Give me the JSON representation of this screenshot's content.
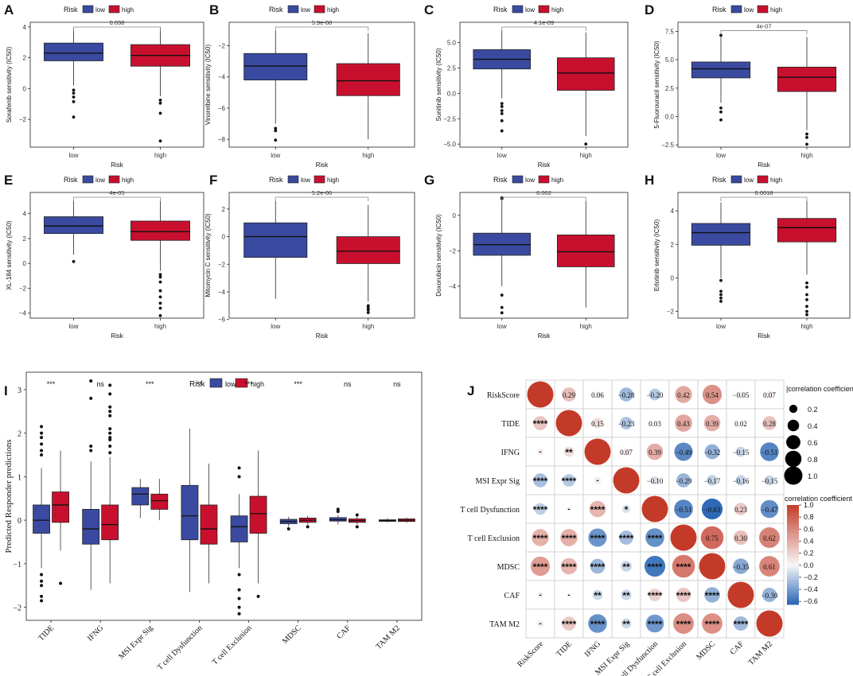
{
  "colors": {
    "low": "#3a4aa0",
    "high": "#c8102e",
    "axis": "#333333",
    "grid": "#bbbbbb"
  },
  "risk_legend": {
    "title": "Risk",
    "low": "low",
    "high": "high"
  },
  "chart_data": [
    {
      "panel": "A",
      "type": "box",
      "xlabel": "Risk",
      "ylabel": "Sorafenib sensitivity (IC50)",
      "categories": [
        "low",
        "high"
      ],
      "pvalue": "0.038",
      "ylim": [
        -3.8,
        4.3
      ],
      "yticks": [
        -2,
        0,
        2,
        4
      ],
      "boxes": [
        {
          "group": "low",
          "q1": 1.8,
          "median": 2.3,
          "q3": 2.95,
          "whisker_low": 0.2,
          "whisker_high": 3.9,
          "outliers": [
            -0.1,
            -0.3,
            -0.55,
            -0.85,
            -1.85
          ]
        },
        {
          "group": "high",
          "q1": 1.45,
          "median": 2.15,
          "q3": 2.85,
          "whisker_low": -0.5,
          "whisker_high": 4.0,
          "outliers": [
            -0.75,
            -0.95,
            -1.6,
            -3.4
          ]
        }
      ]
    },
    {
      "panel": "B",
      "type": "box",
      "xlabel": "Risk",
      "ylabel": "Vinorelbine sensitivity (IC50)",
      "categories": [
        "low",
        "high"
      ],
      "pvalue": "5.9e-08",
      "ylim": [
        -8.5,
        -0.5
      ],
      "yticks": [
        -8,
        -6,
        -4,
        -2
      ],
      "boxes": [
        {
          "group": "low",
          "q1": -4.2,
          "median": -3.3,
          "q3": -2.5,
          "whisker_low": -7.0,
          "whisker_high": -1.0,
          "outliers": [
            -7.3,
            -7.45,
            -8.05
          ]
        },
        {
          "group": "high",
          "q1": -5.2,
          "median": -4.25,
          "q3": -3.15,
          "whisker_low": -8.0,
          "whisker_high": -1.2,
          "outliers": []
        }
      ]
    },
    {
      "panel": "C",
      "type": "box",
      "xlabel": "Risk",
      "ylabel": "Sunitinib sensitivity (IC50)",
      "categories": [
        "low",
        "high"
      ],
      "pvalue": "4.1e-09",
      "ylim": [
        -5.3,
        7.0
      ],
      "yticks": [
        -5.0,
        -2.5,
        0.0,
        2.5,
        5.0
      ],
      "boxes": [
        {
          "group": "low",
          "q1": 2.4,
          "median": 3.35,
          "q3": 4.3,
          "whisker_low": -0.5,
          "whisker_high": 6.2,
          "outliers": [
            -1.0,
            -1.3,
            -1.7,
            -2.0,
            -2.7,
            -3.7
          ]
        },
        {
          "group": "high",
          "q1": 0.3,
          "median": 2.0,
          "q3": 3.5,
          "whisker_low": -4.2,
          "whisker_high": 6.0,
          "outliers": [
            -5.0
          ]
        }
      ]
    },
    {
      "panel": "D",
      "type": "box",
      "xlabel": "Risk",
      "ylabel": "5-Fluorouracil sensitivity (IC50)",
      "categories": [
        "low",
        "high"
      ],
      "pvalue": "4e-07",
      "ylim": [
        -2.7,
        8.3
      ],
      "yticks": [
        -2.5,
        0.0,
        2.5,
        5.0,
        7.5
      ],
      "boxes": [
        {
          "group": "low",
          "q1": 3.4,
          "median": 4.2,
          "q3": 4.8,
          "whisker_low": 1.2,
          "whisker_high": 7.0,
          "outliers": [
            7.15,
            0.75,
            0.4,
            -0.3
          ]
        },
        {
          "group": "high",
          "q1": 2.2,
          "median": 3.45,
          "q3": 4.35,
          "whisker_low": -1.2,
          "whisker_high": 7.0,
          "outliers": [
            -1.55,
            -1.85,
            -2.45
          ]
        }
      ]
    },
    {
      "panel": "E",
      "type": "box",
      "xlabel": "Risk",
      "ylabel": "XL-184 sensitivity (IC50)",
      "categories": [
        "low",
        "high"
      ],
      "pvalue": "4e-05",
      "ylim": [
        -4.4,
        5.7
      ],
      "yticks": [
        -4,
        -2,
        0,
        2,
        4
      ],
      "boxes": [
        {
          "group": "low",
          "q1": 2.4,
          "median": 3.0,
          "q3": 3.75,
          "whisker_low": 0.7,
          "whisker_high": 5.0,
          "outliers": [
            0.15
          ]
        },
        {
          "group": "high",
          "q1": 1.85,
          "median": 2.55,
          "q3": 3.4,
          "whisker_low": -0.6,
          "whisker_high": 5.0,
          "outliers": [
            -0.9,
            -1.1,
            -1.5,
            -2.2,
            -2.7,
            -3.2,
            -3.6,
            -4.2
          ]
        }
      ]
    },
    {
      "panel": "F",
      "type": "box",
      "xlabel": "Risk",
      "ylabel": "Mitomycin C sensitivity (IC50)",
      "categories": [
        "low",
        "high"
      ],
      "pvalue": "5.2e-06",
      "ylim": [
        -5.9,
        3.2
      ],
      "yticks": [
        -6,
        -4,
        -2,
        0,
        2
      ],
      "boxes": [
        {
          "group": "low",
          "q1": -1.5,
          "median": 0.0,
          "q3": 1.0,
          "whisker_low": -4.5,
          "whisker_high": 2.6,
          "outliers": []
        },
        {
          "group": "high",
          "q1": -1.95,
          "median": -1.05,
          "q3": 0.0,
          "whisker_low": -4.7,
          "whisker_high": 2.3,
          "outliers": [
            -5.0,
            -5.15,
            -5.3,
            -5.5
          ]
        }
      ]
    },
    {
      "panel": "G",
      "type": "box",
      "xlabel": "Risk",
      "ylabel": "Doxorubicin sensitivity (IC50)",
      "categories": [
        "low",
        "high"
      ],
      "pvalue": "0.002",
      "ylim": [
        -5.8,
        1.3
      ],
      "yticks": [
        -4,
        -2,
        0
      ],
      "boxes": [
        {
          "group": "low",
          "q1": -2.25,
          "median": -1.65,
          "q3": -1.0,
          "whisker_low": -4.0,
          "whisker_high": 0.9,
          "outliers": [
            1.0,
            0.95,
            -4.5,
            -5.2,
            -5.5
          ]
        },
        {
          "group": "high",
          "q1": -2.9,
          "median": -2.05,
          "q3": -1.1,
          "whisker_low": -5.2,
          "whisker_high": 0.8,
          "outliers": []
        }
      ]
    },
    {
      "panel": "H",
      "type": "box",
      "xlabel": "Risk",
      "ylabel": "Erlotinib sensitivity (IC50)",
      "categories": [
        "low",
        "high"
      ],
      "pvalue": "0.0018",
      "ylim": [
        -2.4,
        5.1
      ],
      "yticks": [
        -2,
        0,
        2,
        4
      ],
      "boxes": [
        {
          "group": "low",
          "q1": 1.95,
          "median": 2.7,
          "q3": 3.25,
          "whisker_low": 0.0,
          "whisker_high": 4.5,
          "outliers": [
            -0.15,
            -0.8,
            -1.0,
            -1.2,
            -1.4
          ]
        },
        {
          "group": "high",
          "q1": 2.15,
          "median": 3.0,
          "q3": 3.55,
          "whisker_low": 0.2,
          "whisker_high": 4.6,
          "outliers": [
            -0.3,
            -0.55,
            -1.0,
            -1.3,
            -1.7,
            -2.0,
            -2.2
          ]
        }
      ]
    },
    {
      "panel": "I",
      "type": "box",
      "xlabel": "",
      "ylabel": "Predicted Responder predictions",
      "categories": [
        "TIDE",
        "IFNG",
        "MSI Expr Sig",
        "T cell Dysfunction",
        "T cell Exclusion",
        "MDSC",
        "CAF",
        "TAM M2"
      ],
      "significance": [
        "***",
        "ns",
        "***",
        "**",
        "***",
        "***",
        "ns",
        "ns"
      ],
      "ylim": [
        -2.3,
        3.4
      ],
      "yticks": [
        -2,
        -1,
        0,
        1,
        2,
        3
      ],
      "series": [
        {
          "name": "low",
          "boxes": [
            {
              "q1": -0.3,
              "median": 0.0,
              "q3": 0.35,
              "whisker_low": -1.1,
              "whisker_high": 1.2,
              "outliers": [
                1.5,
                1.6,
                1.75,
                1.9,
                2.0,
                2.15,
                -1.25,
                -1.4,
                -1.5,
                -1.75,
                -1.85
              ]
            },
            {
              "q1": -0.55,
              "median": -0.2,
              "q3": 0.25,
              "whisker_low": -1.6,
              "whisker_high": 1.35,
              "outliers": [
                1.6,
                1.7,
                2.8,
                3.2
              ]
            },
            {
              "q1": 0.35,
              "median": 0.6,
              "q3": 0.75,
              "whisker_low": 0.05,
              "whisker_high": 0.95,
              "outliers": []
            },
            {
              "q1": -0.45,
              "median": 0.1,
              "q3": 0.8,
              "whisker_low": -1.65,
              "whisker_high": 2.1,
              "outliers": []
            },
            {
              "q1": -0.5,
              "median": -0.15,
              "q3": 0.1,
              "whisker_low": -1.1,
              "whisker_high": 0.6,
              "outliers": [
                1.2,
                1.0,
                -1.25,
                -1.6,
                -1.8,
                -2.0,
                -2.15
              ]
            },
            {
              "q1": -0.08,
              "median": -0.03,
              "q3": 0.02,
              "whisker_low": -0.15,
              "whisker_high": 0.08,
              "outliers": [
                -0.2
              ]
            },
            {
              "q1": -0.02,
              "median": 0.01,
              "q3": 0.06,
              "whisker_low": -0.1,
              "whisker_high": 0.12,
              "outliers": [
                0.2,
                0.25
              ]
            },
            {
              "q1": -0.02,
              "median": -0.01,
              "q3": 0.01,
              "whisker_low": -0.05,
              "whisker_high": 0.05,
              "outliers": []
            }
          ]
        },
        {
          "name": "high",
          "boxes": [
            {
              "q1": -0.05,
              "median": 0.35,
              "q3": 0.65,
              "whisker_low": -0.7,
              "whisker_high": 1.6,
              "outliers": [
                -1.45
              ]
            },
            {
              "q1": -0.45,
              "median": -0.1,
              "q3": 0.35,
              "whisker_low": -1.45,
              "whisker_high": 1.45,
              "outliers": [
                1.55,
                1.7,
                1.85,
                1.9,
                2.0,
                2.1,
                2.4,
                2.5,
                2.6,
                2.9,
                3.1
              ]
            },
            {
              "q1": 0.25,
              "median": 0.45,
              "q3": 0.6,
              "whisker_low": 0.0,
              "whisker_high": 0.95,
              "outliers": []
            },
            {
              "q1": -0.55,
              "median": -0.2,
              "q3": 0.35,
              "whisker_low": -1.45,
              "whisker_high": 1.3,
              "outliers": []
            },
            {
              "q1": -0.3,
              "median": 0.15,
              "q3": 0.55,
              "whisker_low": -1.45,
              "whisker_high": 1.6,
              "outliers": [
                -1.75
              ]
            },
            {
              "q1": -0.05,
              "median": 0.0,
              "q3": 0.05,
              "whisker_low": -0.1,
              "whisker_high": 0.1,
              "outliers": [
                -0.15
              ]
            },
            {
              "q1": -0.05,
              "median": -0.01,
              "q3": 0.03,
              "whisker_low": -0.1,
              "whisker_high": 0.08,
              "outliers": [
                0.12,
                -0.15
              ]
            },
            {
              "q1": -0.03,
              "median": 0.0,
              "q3": 0.03,
              "whisker_low": -0.06,
              "whisker_high": 0.06,
              "outliers": []
            }
          ]
        }
      ]
    },
    {
      "panel": "J",
      "type": "heatmap",
      "labels": [
        "RiskScore",
        "TIDE",
        "IFNG",
        "MSI Expr Sig",
        "T cell Dysfunction",
        "T cell Exclusion",
        "MDSC",
        "CAF",
        "TAM M2"
      ],
      "matrix": [
        [
          1.0,
          0.29,
          0.06,
          -0.28,
          -0.2,
          0.42,
          0.54,
          -0.05,
          0.07
        ],
        [
          0.29,
          1.0,
          0.15,
          -0.23,
          0.03,
          0.43,
          0.39,
          0.02,
          0.28
        ],
        [
          0.06,
          0.15,
          1.0,
          0.07,
          0.39,
          -0.49,
          -0.32,
          -0.15,
          -0.51
        ],
        [
          -0.28,
          -0.23,
          0.07,
          1.0,
          -0.1,
          -0.29,
          -0.17,
          -0.16,
          -0.15
        ],
        [
          -0.2,
          0.03,
          0.39,
          -0.1,
          1.0,
          -0.51,
          -0.63,
          0.23,
          -0.47
        ],
        [
          0.42,
          0.43,
          -0.49,
          -0.29,
          -0.51,
          1.0,
          0.75,
          0.3,
          0.62
        ],
        [
          0.54,
          0.39,
          -0.32,
          -0.17,
          -0.63,
          0.75,
          1.0,
          -0.35,
          0.61
        ],
        [
          -0.05,
          0.02,
          -0.15,
          -0.16,
          0.23,
          0.3,
          -0.35,
          1.0,
          -0.3
        ],
        [
          0.07,
          0.28,
          -0.51,
          -0.15,
          -0.47,
          0.62,
          0.61,
          -0.3,
          1.0
        ]
      ],
      "lower_labels": [
        [
          "",
          "",
          "",
          "",
          "",
          "",
          "",
          "",
          ""
        ],
        [
          "****",
          "",
          "",
          "",
          "",
          "",
          "",
          "",
          ""
        ],
        [
          "-",
          "**",
          "",
          "",
          "",
          "",
          "",
          "",
          ""
        ],
        [
          "****",
          "****",
          "-",
          "",
          "",
          "",
          "",
          "",
          ""
        ],
        [
          "****",
          "-",
          "****",
          "*",
          "",
          "",
          "",
          "",
          ""
        ],
        [
          "****",
          "****",
          "****",
          "****",
          "****",
          "",
          "",
          "",
          ""
        ],
        [
          "****",
          "****",
          "****",
          "**",
          "****",
          "****",
          "",
          "",
          ""
        ],
        [
          "-",
          "-",
          "**",
          "**",
          "****",
          "****",
          "****",
          "",
          ""
        ],
        [
          "-",
          "****",
          "****",
          "**",
          "****",
          "****",
          "****",
          "****",
          ""
        ]
      ],
      "legend_size": {
        "title": "|correlation coefficient|",
        "values": [
          0.2,
          0.4,
          0.6,
          0.8,
          1.0
        ],
        "labels": [
          "0.2",
          "0.4",
          "0.6",
          "0.8",
          "1.0"
        ]
      },
      "legend_color": {
        "title": "correlation coefficient",
        "ticks": [
          1.0,
          0.8,
          0.6,
          0.4,
          0.2,
          0.0,
          -0.2,
          -0.4,
          -0.6
        ],
        "labels": [
          "1.0",
          "0.8",
          "0.6",
          "0.4",
          "0.2",
          "0.0",
          "−0.2",
          "−0.4",
          "−0.6"
        ]
      }
    }
  ]
}
